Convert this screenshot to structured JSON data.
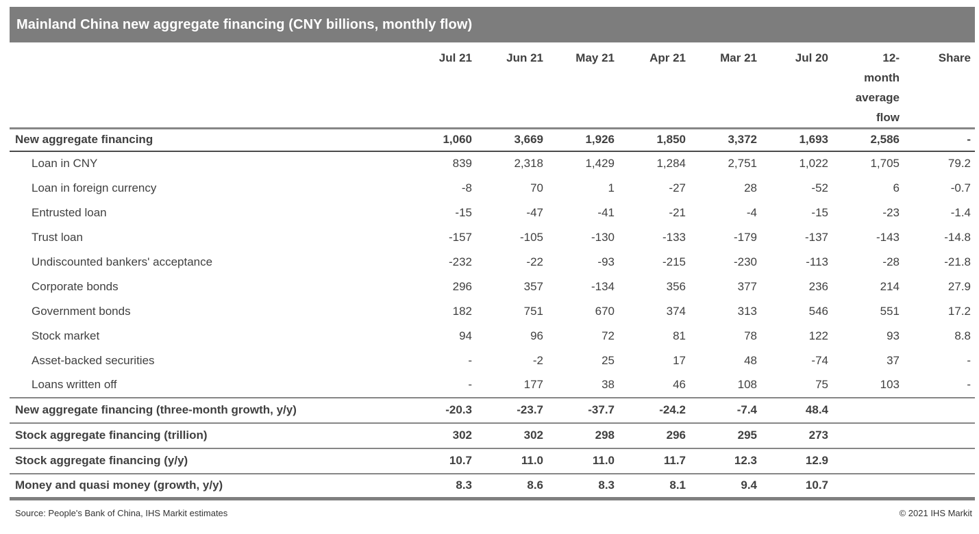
{
  "title": "Mainland China new aggregate financing (CNY billions, monthly flow)",
  "colors": {
    "header_bar": "#7d7d7d",
    "text": "#404040",
    "rule_gray": "#868686",
    "rule_dark": "#4a4a4a",
    "rule_bottom": "#7f7f7f"
  },
  "footer": {
    "source": "Source: People's Bank of China, IHS Markit estimates",
    "copyright": "© 2021 IHS Markit"
  },
  "chart_data": {
    "type": "table",
    "title": "Mainland China new aggregate financing (CNY billions, monthly flow)",
    "columns": [
      "",
      "Jul 21",
      "Jun 21",
      "May 21",
      "Apr 21",
      "Mar 21",
      "Jul 20",
      "12-month average flow",
      "Share"
    ],
    "columns_display": [
      "",
      "Jul 21",
      "Jun 21",
      "May 21",
      "Apr 21",
      "Mar 21",
      "Jul 20",
      "12-\nmonth\naverage\nflow",
      "Share"
    ],
    "rows": [
      {
        "label": "New aggregate financing",
        "group": "total",
        "values": [
          "1,060",
          "3,669",
          "1,926",
          "1,850",
          "3,372",
          "1,693",
          "2,586",
          "-"
        ]
      },
      {
        "label": "Loan in CNY",
        "group": "component",
        "values": [
          "839",
          "2,318",
          "1,429",
          "1,284",
          "2,751",
          "1,022",
          "1,705",
          "79.2"
        ]
      },
      {
        "label": "Loan in foreign currency",
        "group": "component",
        "values": [
          "-8",
          "70",
          "1",
          "-27",
          "28",
          "-52",
          "6",
          "-0.7"
        ]
      },
      {
        "label": "Entrusted loan",
        "group": "component",
        "values": [
          "-15",
          "-47",
          "-41",
          "-21",
          "-4",
          "-15",
          "-23",
          "-1.4"
        ]
      },
      {
        "label": "Trust loan",
        "group": "component",
        "values": [
          "-157",
          "-105",
          "-130",
          "-133",
          "-179",
          "-137",
          "-143",
          "-14.8"
        ]
      },
      {
        "label": "Undiscounted bankers' acceptance",
        "group": "component",
        "values": [
          "-232",
          "-22",
          "-93",
          "-215",
          "-230",
          "-113",
          "-28",
          "-21.8"
        ]
      },
      {
        "label": "Corporate bonds",
        "group": "component",
        "values": [
          "296",
          "357",
          "-134",
          "356",
          "377",
          "236",
          "214",
          "27.9"
        ]
      },
      {
        "label": "Government bonds",
        "group": "component",
        "values": [
          "182",
          "751",
          "670",
          "374",
          "313",
          "546",
          "551",
          "17.2"
        ]
      },
      {
        "label": "Stock market",
        "group": "component",
        "values": [
          "94",
          "96",
          "72",
          "81",
          "78",
          "122",
          "93",
          "8.8"
        ]
      },
      {
        "label": "Asset-backed securities",
        "group": "component",
        "values": [
          "-",
          "-2",
          "25",
          "17",
          "48",
          "-74",
          "37",
          "-"
        ]
      },
      {
        "label": "Loans written off",
        "group": "component",
        "values": [
          "-",
          "177",
          "38",
          "46",
          "108",
          "75",
          "103",
          "-"
        ]
      },
      {
        "label": "New aggregate financing (three-month growth, y/y)",
        "group": "summary",
        "values": [
          "-20.3",
          "-23.7",
          "-37.7",
          "-24.2",
          "-7.4",
          "48.4",
          "",
          ""
        ]
      },
      {
        "label": "Stock aggregate financing (trillion)",
        "group": "summary",
        "values": [
          "302",
          "302",
          "298",
          "296",
          "295",
          "273",
          "",
          ""
        ]
      },
      {
        "label": "Stock aggregate financing (y/y)",
        "group": "summary",
        "values": [
          "10.7",
          "11.0",
          "11.0",
          "11.7",
          "12.3",
          "12.9",
          "",
          ""
        ]
      },
      {
        "label": "Money and quasi money (growth, y/y)",
        "group": "summary",
        "values": [
          "8.3",
          "8.6",
          "8.3",
          "8.1",
          "9.4",
          "10.7",
          "",
          ""
        ]
      }
    ]
  }
}
